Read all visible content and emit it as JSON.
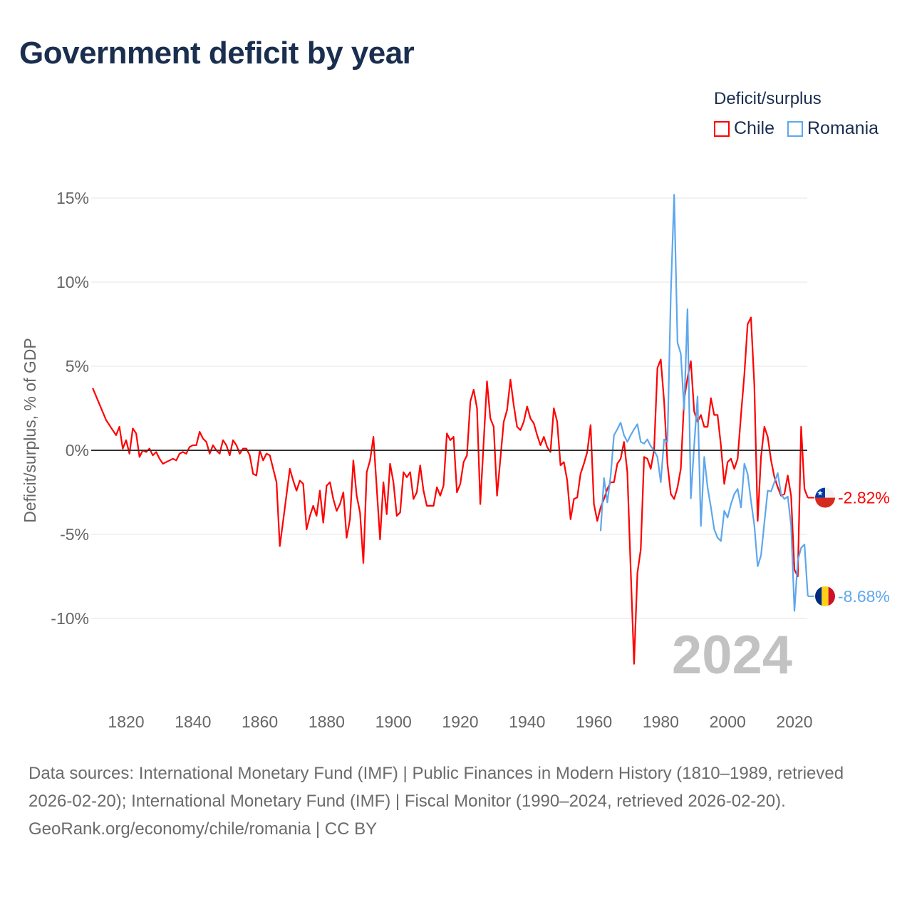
{
  "title": "Government deficit by year",
  "legend": {
    "title": "Deficit/surplus",
    "items": [
      {
        "label": "Chile",
        "color": "#ff0000"
      },
      {
        "label": "Romania",
        "color": "#5ea7ec"
      }
    ]
  },
  "chart_data": {
    "type": "line",
    "title": "Government deficit by year",
    "xlabel": "",
    "ylabel": "Deficit/surplus, % of GDP",
    "xlim": [
      1810,
      2024
    ],
    "ylim": [
      -13,
      15.5
    ],
    "xticks": [
      1820,
      1840,
      1860,
      1880,
      1900,
      1920,
      1940,
      1960,
      1980,
      2000,
      2020
    ],
    "yticks": [
      15,
      10,
      5,
      0,
      -5,
      -10
    ],
    "ytick_labels": [
      "15%",
      "10%",
      "5%",
      "0%",
      "-5%",
      "-10%"
    ],
    "grid": true,
    "legend_position": "top-right",
    "year_label": "2024",
    "series": [
      {
        "name": "Chile",
        "color": "#ff0000",
        "end_label": "-2.82%",
        "points": [
          [
            1810,
            3.7
          ],
          [
            1814,
            1.8
          ],
          [
            1816,
            1.2
          ],
          [
            1817,
            0.9
          ],
          [
            1818,
            1.4
          ],
          [
            1819,
            0.1
          ],
          [
            1820,
            0.6
          ],
          [
            1821,
            -0.2
          ],
          [
            1822,
            1.3
          ],
          [
            1823,
            1.0
          ],
          [
            1824,
            -0.4
          ],
          [
            1825,
            0.0
          ],
          [
            1826,
            -0.1
          ],
          [
            1827,
            0.1
          ],
          [
            1828,
            -0.3
          ],
          [
            1829,
            -0.1
          ],
          [
            1830,
            -0.5
          ],
          [
            1831,
            -0.8
          ],
          [
            1833,
            -0.6
          ],
          [
            1834,
            -0.5
          ],
          [
            1835,
            -0.6
          ],
          [
            1836,
            -0.2
          ],
          [
            1837,
            -0.1
          ],
          [
            1838,
            -0.2
          ],
          [
            1839,
            0.2
          ],
          [
            1840,
            0.3
          ],
          [
            1841,
            0.3
          ],
          [
            1842,
            1.1
          ],
          [
            1843,
            0.7
          ],
          [
            1844,
            0.5
          ],
          [
            1845,
            -0.2
          ],
          [
            1846,
            0.3
          ],
          [
            1847,
            0.0
          ],
          [
            1848,
            -0.2
          ],
          [
            1849,
            0.6
          ],
          [
            1850,
            0.3
          ],
          [
            1851,
            -0.3
          ],
          [
            1852,
            0.6
          ],
          [
            1853,
            0.3
          ],
          [
            1854,
            -0.2
          ],
          [
            1855,
            0.1
          ],
          [
            1856,
            0.1
          ],
          [
            1857,
            -0.3
          ],
          [
            1858,
            -1.4
          ],
          [
            1859,
            -1.5
          ],
          [
            1860,
            0.0
          ],
          [
            1861,
            -0.6
          ],
          [
            1862,
            -0.2
          ],
          [
            1863,
            -0.3
          ],
          [
            1865,
            -1.9
          ],
          [
            1866,
            -5.7
          ],
          [
            1867,
            -4.2
          ],
          [
            1869,
            -1.1
          ],
          [
            1870,
            -1.8
          ],
          [
            1871,
            -2.4
          ],
          [
            1872,
            -1.8
          ],
          [
            1873,
            -2.0
          ],
          [
            1874,
            -4.7
          ],
          [
            1875,
            -3.9
          ],
          [
            1876,
            -3.3
          ],
          [
            1877,
            -3.9
          ],
          [
            1878,
            -2.4
          ],
          [
            1879,
            -4.3
          ],
          [
            1880,
            -2.1
          ],
          [
            1881,
            -1.9
          ],
          [
            1882,
            -2.9
          ],
          [
            1883,
            -3.6
          ],
          [
            1884,
            -3.2
          ],
          [
            1885,
            -2.5
          ],
          [
            1886,
            -5.2
          ],
          [
            1887,
            -4.1
          ],
          [
            1888,
            -0.6
          ],
          [
            1889,
            -2.7
          ],
          [
            1890,
            -3.7
          ],
          [
            1891,
            -6.7
          ],
          [
            1892,
            -1.3
          ],
          [
            1893,
            -0.6
          ],
          [
            1894,
            0.8
          ],
          [
            1896,
            -5.3
          ],
          [
            1897,
            -1.9
          ],
          [
            1898,
            -3.8
          ],
          [
            1899,
            -0.8
          ],
          [
            1900,
            -1.9
          ],
          [
            1901,
            -3.9
          ],
          [
            1902,
            -3.7
          ],
          [
            1903,
            -1.3
          ],
          [
            1904,
            -1.6
          ],
          [
            1905,
            -1.3
          ],
          [
            1906,
            -2.9
          ],
          [
            1907,
            -2.5
          ],
          [
            1908,
            -0.9
          ],
          [
            1909,
            -2.4
          ],
          [
            1910,
            -3.3
          ],
          [
            1911,
            -3.3
          ],
          [
            1912,
            -3.3
          ],
          [
            1913,
            -2.2
          ],
          [
            1914,
            -2.7
          ],
          [
            1915,
            -2.1
          ],
          [
            1916,
            1.0
          ],
          [
            1917,
            0.6
          ],
          [
            1918,
            0.8
          ],
          [
            1919,
            -2.5
          ],
          [
            1920,
            -2.0
          ],
          [
            1921,
            -0.7
          ],
          [
            1922,
            -0.3
          ],
          [
            1923,
            2.9
          ],
          [
            1924,
            3.6
          ],
          [
            1925,
            2.5
          ],
          [
            1926,
            -3.2
          ],
          [
            1928,
            4.1
          ],
          [
            1929,
            1.9
          ],
          [
            1930,
            1.4
          ],
          [
            1931,
            -2.7
          ],
          [
            1932,
            -0.5
          ],
          [
            1933,
            1.7
          ],
          [
            1934,
            2.4
          ],
          [
            1935,
            4.2
          ],
          [
            1936,
            2.7
          ],
          [
            1937,
            1.4
          ],
          [
            1938,
            1.2
          ],
          [
            1939,
            1.7
          ],
          [
            1940,
            2.6
          ],
          [
            1941,
            1.9
          ],
          [
            1942,
            1.6
          ],
          [
            1943,
            0.9
          ],
          [
            1944,
            0.3
          ],
          [
            1945,
            0.8
          ],
          [
            1946,
            0.2
          ],
          [
            1947,
            -0.1
          ],
          [
            1948,
            2.5
          ],
          [
            1949,
            1.7
          ],
          [
            1950,
            -0.9
          ],
          [
            1951,
            -0.7
          ],
          [
            1952,
            -1.8
          ],
          [
            1953,
            -4.1
          ],
          [
            1954,
            -2.9
          ],
          [
            1955,
            -2.8
          ],
          [
            1956,
            -1.4
          ],
          [
            1957,
            -0.8
          ],
          [
            1958,
            -0.1
          ],
          [
            1959,
            1.5
          ],
          [
            1960,
            -3.2
          ],
          [
            1961,
            -4.2
          ],
          [
            1962,
            -3.4
          ],
          [
            1963,
            -2.9
          ],
          [
            1964,
            -2.3
          ],
          [
            1965,
            -1.9
          ],
          [
            1966,
            -1.9
          ],
          [
            1967,
            -0.8
          ],
          [
            1968,
            -0.5
          ],
          [
            1969,
            0.5
          ],
          [
            1970,
            -1.3
          ],
          [
            1971,
            -7.1
          ],
          [
            1972,
            -12.7
          ],
          [
            1973,
            -7.3
          ],
          [
            1974,
            -5.9
          ],
          [
            1975,
            -0.4
          ],
          [
            1976,
            -0.5
          ],
          [
            1977,
            -1.1
          ],
          [
            1978,
            0.0
          ],
          [
            1979,
            4.9
          ],
          [
            1980,
            5.4
          ],
          [
            1981,
            2.9
          ],
          [
            1982,
            -0.8
          ],
          [
            1983,
            -2.6
          ],
          [
            1984,
            -2.9
          ],
          [
            1985,
            -2.2
          ],
          [
            1986,
            -1.1
          ],
          [
            1987,
            3.0
          ],
          [
            1988,
            4.3
          ],
          [
            1989,
            5.3
          ],
          [
            1990,
            2.3
          ],
          [
            1991,
            1.7
          ],
          [
            1992,
            2.1
          ],
          [
            1993,
            1.4
          ],
          [
            1994,
            1.4
          ],
          [
            1995,
            3.1
          ],
          [
            1996,
            2.1
          ],
          [
            1997,
            2.1
          ],
          [
            1998,
            0.3
          ],
          [
            1999,
            -2.0
          ],
          [
            2000,
            -0.7
          ],
          [
            2001,
            -0.5
          ],
          [
            2002,
            -1.1
          ],
          [
            2003,
            -0.5
          ],
          [
            2004,
            2.1
          ],
          [
            2005,
            4.5
          ],
          [
            2006,
            7.5
          ],
          [
            2007,
            7.9
          ],
          [
            2008,
            3.9
          ],
          [
            2009,
            -4.2
          ],
          [
            2010,
            -0.4
          ],
          [
            2011,
            1.4
          ],
          [
            2012,
            0.8
          ],
          [
            2013,
            -0.6
          ],
          [
            2014,
            -1.6
          ],
          [
            2015,
            -2.2
          ],
          [
            2016,
            -2.7
          ],
          [
            2017,
            -2.6
          ],
          [
            2018,
            -1.5
          ],
          [
            2019,
            -2.7
          ],
          [
            2020,
            -7.1
          ],
          [
            2021,
            -7.5
          ],
          [
            2022,
            1.4
          ],
          [
            2023,
            -2.3
          ],
          [
            2024,
            -2.82
          ]
        ]
      },
      {
        "name": "Romania",
        "color": "#5ea7ec",
        "end_label": "-8.68%",
        "points": [
          [
            1962,
            -4.8
          ],
          [
            1963,
            -1.65
          ],
          [
            1964,
            -3.1
          ],
          [
            1965,
            -1.5
          ],
          [
            1966,
            0.9
          ],
          [
            1967,
            1.25
          ],
          [
            1968,
            1.65
          ],
          [
            1969,
            0.9
          ],
          [
            1970,
            0.5
          ],
          [
            1971,
            0.9
          ],
          [
            1972,
            1.25
          ],
          [
            1973,
            1.55
          ],
          [
            1974,
            0.5
          ],
          [
            1975,
            0.4
          ],
          [
            1976,
            0.65
          ],
          [
            1977,
            0.25
          ],
          [
            1978,
            0.0
          ],
          [
            1979,
            -0.4
          ],
          [
            1980,
            -1.9
          ],
          [
            1981,
            0.65
          ],
          [
            1982,
            0.5
          ],
          [
            1983,
            9.3
          ],
          [
            1984,
            15.2
          ],
          [
            1985,
            6.4
          ],
          [
            1986,
            5.75
          ],
          [
            1987,
            2.4
          ],
          [
            1988,
            8.4
          ],
          [
            1989,
            -2.85
          ],
          [
            1990,
            0.3
          ],
          [
            1991,
            3.2
          ],
          [
            1992,
            -4.5
          ],
          [
            1993,
            -0.4
          ],
          [
            1994,
            -2.2
          ],
          [
            1995,
            -3.4
          ],
          [
            1996,
            -4.7
          ],
          [
            1997,
            -5.2
          ],
          [
            1998,
            -5.4
          ],
          [
            1999,
            -3.6
          ],
          [
            2000,
            -4.0
          ],
          [
            2001,
            -3.2
          ],
          [
            2002,
            -2.6
          ],
          [
            2003,
            -2.3
          ],
          [
            2004,
            -3.4
          ],
          [
            2005,
            -0.8
          ],
          [
            2006,
            -1.4
          ],
          [
            2007,
            -3.0
          ],
          [
            2008,
            -4.45
          ],
          [
            2009,
            -6.9
          ],
          [
            2010,
            -6.25
          ],
          [
            2011,
            -4.3
          ],
          [
            2012,
            -2.4
          ],
          [
            2013,
            -2.45
          ],
          [
            2014,
            -1.9
          ],
          [
            2015,
            -1.35
          ],
          [
            2016,
            -2.6
          ],
          [
            2017,
            -2.9
          ],
          [
            2018,
            -2.75
          ],
          [
            2019,
            -4.45
          ],
          [
            2020,
            -9.55
          ],
          [
            2021,
            -6.55
          ],
          [
            2022,
            -5.8
          ],
          [
            2023,
            -5.6
          ],
          [
            2024,
            -8.68
          ]
        ]
      }
    ]
  },
  "footer": {
    "sources": "Data sources: International Monetary Fund (IMF) | Public Finances in Modern History (1810–1989, retrieved 2026-02-20); International Monetary Fund (IMF) | Fiscal Monitor (1990–2024, retrieved 2026-02-20).",
    "credit": "GeoRank.org/economy/chile/romania | CC BY"
  }
}
